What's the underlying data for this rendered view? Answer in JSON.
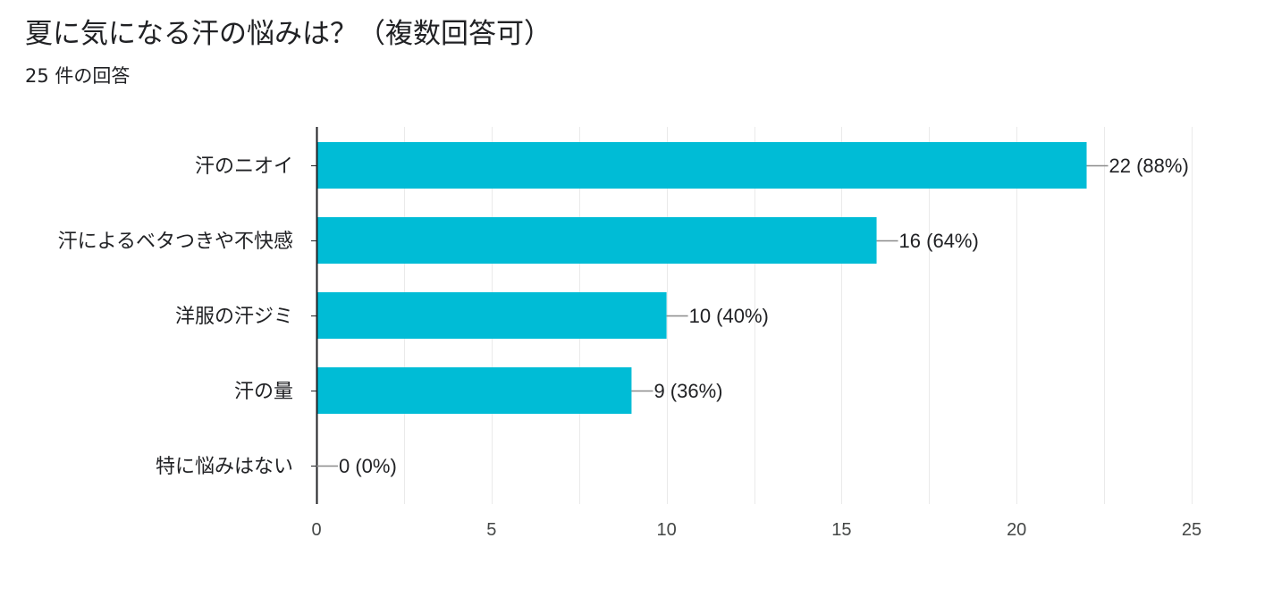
{
  "header": {
    "title": "夏に気になる汗の悩みは？（複数回答可）",
    "responses": "25 件の回答"
  },
  "colors": {
    "bar": "#00BCD6",
    "axis": "#202124",
    "grid": "#EAEAEA",
    "leader": "#8A8A8A"
  },
  "chart_data": {
    "type": "bar",
    "orientation": "horizontal",
    "categories": [
      "汗のニオイ",
      "汗によるベタつきや不快感",
      "洋服の汗ジミ",
      "汗の量",
      "特に悩みはない"
    ],
    "values": [
      22,
      16,
      10,
      9,
      0
    ],
    "value_labels": [
      "22 (88%)",
      "16 (64%)",
      "10 (40%)",
      "9 (36%)",
      "0 (0%)"
    ],
    "xlim": [
      0,
      25
    ],
    "xticks": [
      0,
      5,
      10,
      15,
      20,
      25
    ],
    "grid": true,
    "legend": "none"
  }
}
